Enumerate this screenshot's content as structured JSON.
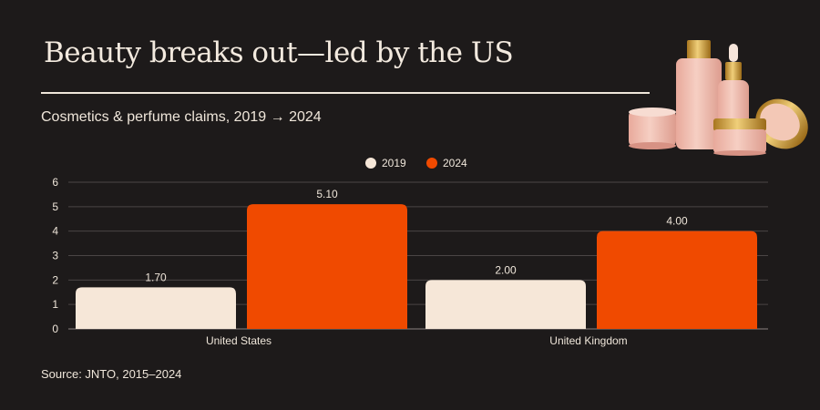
{
  "title": "Beauty breaks out—led by the US",
  "subtitle": "Cosmetics & perfume claims, 2019 → 2024",
  "source": "Source: JNTO, 2015–2024",
  "colors": {
    "background": "#1d1a1a",
    "series_2019": "#f6e7d8",
    "series_2024": "#f04a00",
    "text": "#efe6da",
    "grid": "#4a4545"
  },
  "illustration": "cosmetics-bottles-and-jars",
  "chart_data": {
    "type": "bar",
    "categories": [
      "United States",
      "United Kingdom"
    ],
    "series": [
      {
        "name": "2019",
        "values": [
          1.7,
          2.0
        ],
        "labels": [
          "1.70",
          "2.00"
        ]
      },
      {
        "name": "2024",
        "values": [
          5.1,
          4.0
        ],
        "labels": [
          "5.10",
          "4.00"
        ]
      }
    ],
    "ylim": [
      0,
      6
    ],
    "yticks": [
      "0",
      "1",
      "2",
      "3",
      "4",
      "5",
      "6"
    ],
    "xlabel": "",
    "ylabel": "",
    "grid": true,
    "legend_position": "top-center"
  }
}
